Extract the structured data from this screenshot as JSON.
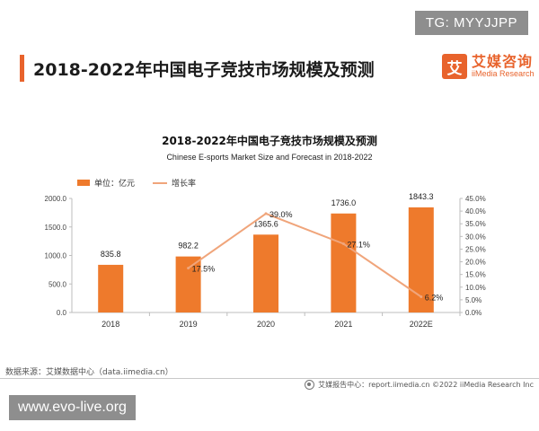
{
  "header": {
    "page_title": "2018-2022年中国电子竞技市场规模及预测",
    "logo_mark": "艾",
    "logo_cn": "艾媒咨询",
    "logo_en": "iiMedia Research"
  },
  "watermarks": {
    "top_right": "TG: MYYJJPP",
    "bottom_left": "www.evo-live.org"
  },
  "footer": {
    "source": "数据来源：艾媒数据中心（data.iimedia.cn）",
    "report": "艾媒报告中心：report.iimedia.cn   ©2022  iiMedia Research  Inc"
  },
  "colors": {
    "brand": "#e8632c",
    "bar": "#ee7a2c",
    "line": "#f0a57b"
  },
  "chart_data": {
    "type": "bar",
    "title": "2018-2022年中国电子竞技市场规模及预测",
    "subtitle": "Chinese E-sports Market Size and Forecast in 2018-2022",
    "categories": [
      "2018",
      "2019",
      "2020",
      "2021",
      "2022E"
    ],
    "series": [
      {
        "name": "单位：亿元",
        "type": "bar",
        "axis": "left",
        "values": [
          835.8,
          982.2,
          1365.6,
          1736.0,
          1843.3
        ],
        "labels": [
          "835.8",
          "982.2",
          "1365.6",
          "1736.0",
          "1843.3"
        ]
      },
      {
        "name": "增长率",
        "type": "line",
        "axis": "right",
        "values": [
          null,
          17.5,
          39.0,
          27.1,
          6.2
        ],
        "labels": [
          "",
          "17.5%",
          "39.0%",
          "27.1%",
          "6.2%"
        ]
      }
    ],
    "ylim": [
      0,
      2000
    ],
    "yticks": [
      "0.0",
      "500.0",
      "1000.0",
      "1500.0",
      "2000.0"
    ],
    "y2lim": [
      0,
      45
    ],
    "y2ticks": [
      "0.0%",
      "5.0%",
      "10.0%",
      "15.0%",
      "20.0%",
      "25.0%",
      "30.0%",
      "35.0%",
      "40.0%",
      "45.0%"
    ],
    "legend": "top-left",
    "grid": false
  }
}
